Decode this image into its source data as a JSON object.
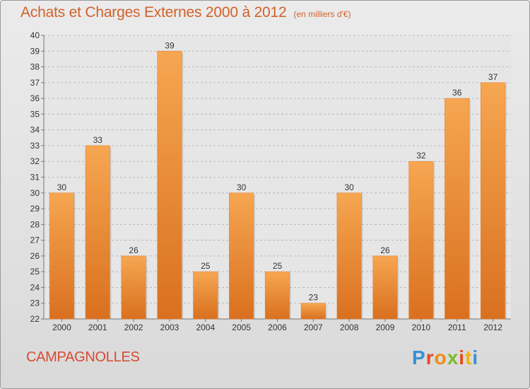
{
  "header": {
    "title": "Achats et Charges Externes 2000 à 2012",
    "unit": "(en milliers d'€)"
  },
  "footer": {
    "commune": "CAMPAGNOLLES",
    "logo": [
      "P",
      "r",
      "o",
      "x",
      "i",
      "t",
      "i"
    ]
  },
  "colors": {
    "bar_top": "#f6a651",
    "bar_bottom": "#d9701f",
    "title": "#d2612b",
    "commune": "#d84a32",
    "logo": [
      "#3a8fd0",
      "#e8471d",
      "#f08a14",
      "#7cbb2a",
      "#e8471d",
      "#f0b414",
      "#3a8fd0"
    ]
  },
  "chart_data": {
    "type": "bar",
    "title": "Achats et Charges Externes 2000 à 2012",
    "subtitle": "(en milliers d'€)",
    "categories": [
      "2000",
      "2001",
      "2002",
      "2003",
      "2004",
      "2005",
      "2006",
      "2007",
      "2008",
      "2009",
      "2010",
      "2011",
      "2012"
    ],
    "values": [
      30,
      33,
      26,
      39,
      25,
      30,
      25,
      23,
      30,
      26,
      32,
      36,
      37
    ],
    "ylim": [
      22,
      40
    ],
    "yticks": [
      22,
      23,
      24,
      25,
      26,
      27,
      28,
      29,
      30,
      31,
      32,
      33,
      34,
      35,
      36,
      37,
      38,
      39,
      40
    ],
    "grid": "horizontal dashed",
    "legend": "none",
    "data_labels": true
  }
}
